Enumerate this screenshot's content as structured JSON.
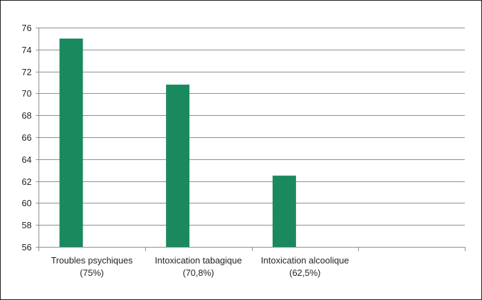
{
  "chart_data": {
    "type": "bar",
    "categories": [
      [
        "Troubles psychiques",
        "(75%)"
      ],
      [
        "Intoxication tabagique",
        "(70,8%)"
      ],
      [
        "Intoxication alcoolique",
        "(62,5%)"
      ],
      [
        "",
        ""
      ]
    ],
    "values": [
      75,
      70.8,
      62.5,
      null
    ],
    "ylim": [
      56,
      76
    ],
    "yticks": [
      56,
      58,
      60,
      62,
      64,
      66,
      68,
      70,
      72,
      74,
      76
    ],
    "ytick_labels": [
      "56",
      "58",
      "60",
      "62",
      "64",
      "66",
      "68",
      "70",
      "72",
      "74",
      "76"
    ],
    "title": "",
    "xlabel": "",
    "ylabel": "",
    "grid": true,
    "legend": "none",
    "bar_color": "#1a8a5e",
    "grid_color": "#8c8c8c",
    "axis_color": "#8c8c8c"
  }
}
